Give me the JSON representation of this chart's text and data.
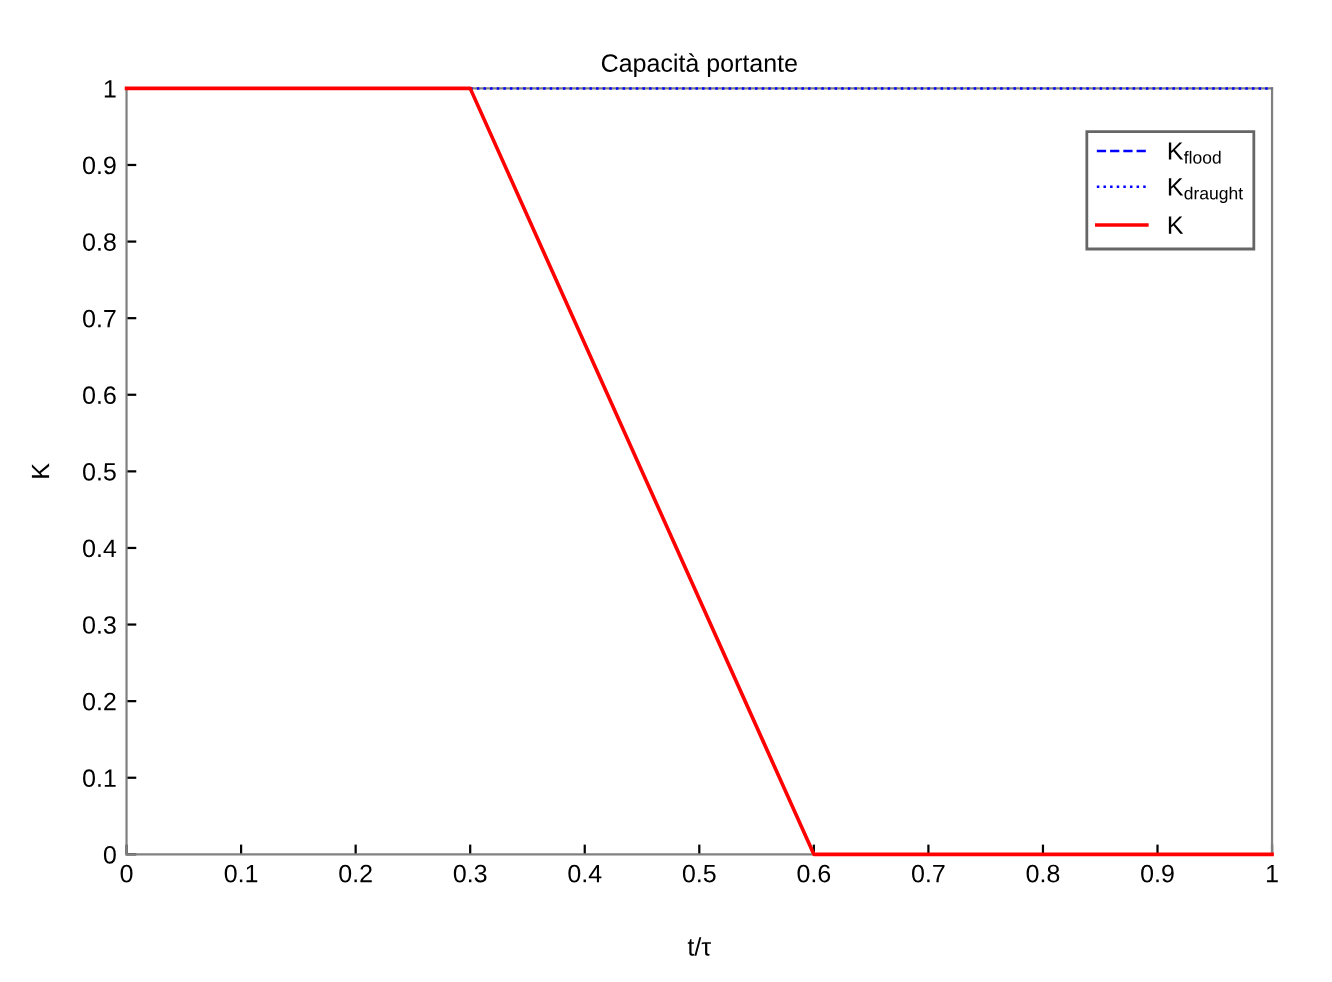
{
  "chart_data": {
    "type": "line",
    "title": "Capacità portante",
    "xlabel": "t/τ",
    "ylabel": "K",
    "x": [
      0,
      0.3,
      0.6,
      1
    ],
    "series": [
      {
        "name": "K$_{flood}$",
        "color": "#0000ff",
        "line_style": "dashed",
        "values": [
          null,
          null,
          null,
          null
        ]
      },
      {
        "name": "K$_{draught}$",
        "color": "#0000ff",
        "line_style": "dotted",
        "values": [
          null,
          1,
          1,
          1
        ]
      },
      {
        "name": "K",
        "color": "#ff0000",
        "line_style": "solid",
        "values": [
          1,
          1,
          0,
          0
        ]
      }
    ],
    "xlim": [
      0,
      1
    ],
    "xticks": [
      0,
      0.1,
      0.2,
      0.3,
      0.4,
      0.5,
      0.6,
      0.7,
      0.8,
      0.9,
      1
    ],
    "ylim": [
      0,
      1
    ],
    "yticks": [
      0,
      0.1,
      0.2,
      0.3,
      0.4,
      0.5,
      0.6,
      0.7,
      0.8,
      0.9,
      1
    ],
    "grid": false,
    "legend": "top right",
    "marker": "none"
  }
}
